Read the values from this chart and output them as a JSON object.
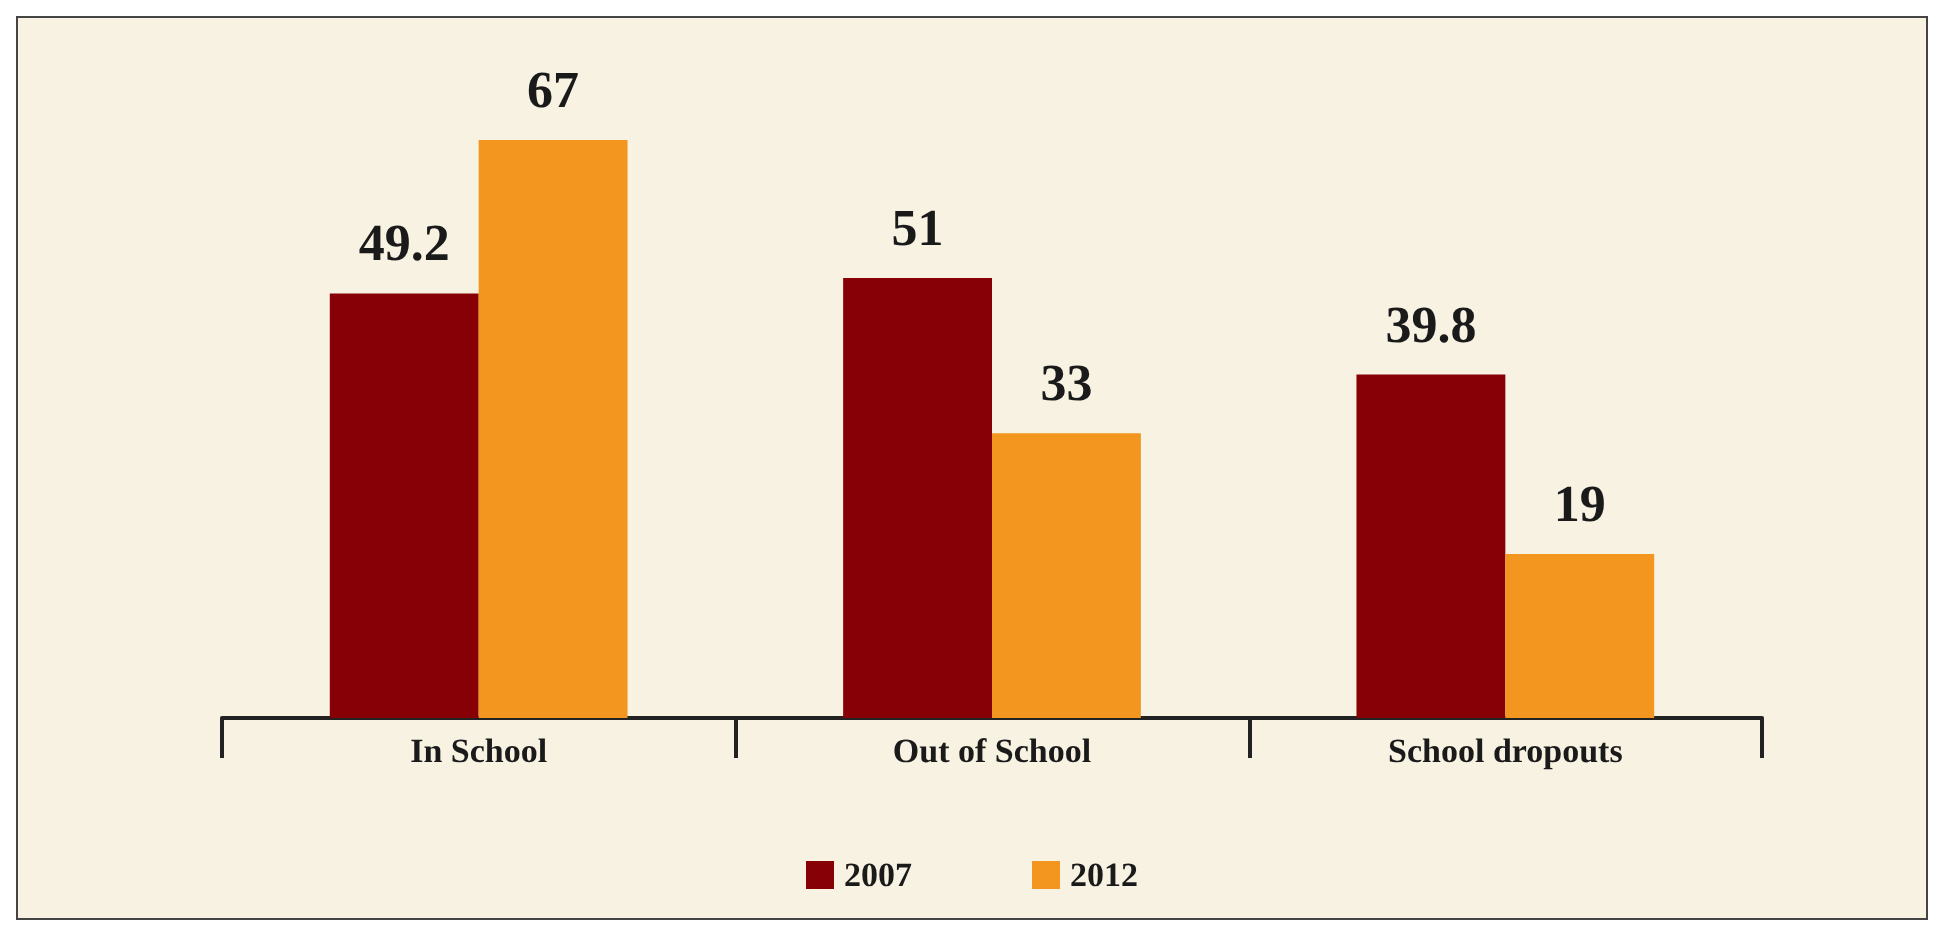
{
  "chart_data": {
    "type": "bar",
    "categories": [
      "In School",
      "Out of School",
      "School dropouts"
    ],
    "series": [
      {
        "name": "2007",
        "color": "#870006",
        "values": [
          49.2,
          51,
          39.8
        ]
      },
      {
        "name": "2012",
        "color": "#f3961f",
        "values": [
          67,
          33,
          19
        ]
      }
    ],
    "data_labels": true,
    "legend": "bottom"
  }
}
